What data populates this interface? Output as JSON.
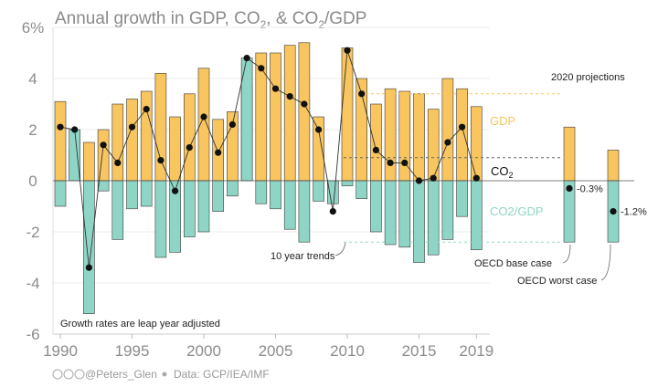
{
  "chart_data": {
    "type": "bar",
    "title_parts": [
      "Annual growth in GDP, CO",
      "2",
      ", & CO",
      "2",
      "/GDP"
    ],
    "x": [
      1990,
      1991,
      1992,
      1993,
      1994,
      1995,
      1996,
      1997,
      1998,
      1999,
      2000,
      2001,
      2002,
      2003,
      2004,
      2005,
      2006,
      2007,
      2008,
      2009,
      2010,
      2011,
      2012,
      2013,
      2014,
      2015,
      2016,
      2017,
      2018,
      2019
    ],
    "series": [
      {
        "name": "GDP",
        "label_text": "GDP",
        "color": "#F8C55F",
        "values": [
          3.1,
          1.2,
          1.5,
          2.0,
          3.0,
          3.2,
          3.5,
          4.2,
          2.5,
          3.4,
          4.4,
          2.4,
          2.7,
          3.7,
          5.0,
          5.0,
          5.3,
          5.4,
          2.5,
          -0.1,
          5.2,
          4.0,
          3.0,
          3.6,
          3.5,
          3.4,
          2.8,
          4.0,
          3.6,
          2.9
        ]
      },
      {
        "name": "CO2/GDP",
        "label_text": "CO2/GDP",
        "color": "#8FD5C6",
        "values": [
          -1.0,
          2.0,
          -5.2,
          -0.4,
          -2.3,
          -1.1,
          -1.0,
          -3.0,
          -2.8,
          -2.2,
          -2.0,
          -1.2,
          -0.6,
          4.8,
          -0.9,
          -1.1,
          -1.9,
          -2.4,
          -0.8,
          -0.9,
          -0.2,
          -0.7,
          -2.0,
          -2.5,
          -2.6,
          -3.2,
          -2.9,
          -2.3,
          -1.4,
          -2.7
        ]
      },
      {
        "name": "CO2",
        "label_parts": [
          "CO",
          "2"
        ],
        "color": "#111111",
        "values": [
          2.1,
          2.0,
          -3.4,
          1.4,
          0.7,
          2.1,
          2.8,
          0.8,
          -0.4,
          1.3,
          2.5,
          1.1,
          2.2,
          4.8,
          4.4,
          3.6,
          3.3,
          3.0,
          2.0,
          -1.2,
          5.1,
          3.4,
          1.2,
          0.7,
          0.7,
          0.0,
          0.1,
          1.5,
          2.1,
          0.1
        ]
      }
    ],
    "ylim": [
      -6,
      6
    ],
    "yticks": [
      -6,
      -4,
      -2,
      0,
      2,
      4,
      6
    ],
    "ytick_labels": [
      "-6",
      "-4",
      "-2",
      "0",
      "2",
      "4",
      "6%"
    ],
    "xticks": [
      1990,
      1995,
      2000,
      2005,
      2010,
      2015,
      2019
    ],
    "xtick_labels": [
      "1990",
      "1995",
      "2000",
      "2005",
      "2010",
      "2015",
      "2019"
    ],
    "trend_lines": {
      "gdp": 3.4,
      "co2": 0.9,
      "ratio": -2.4
    },
    "projections": {
      "heading": "2020 projections",
      "cases": [
        {
          "name": "OECD base case",
          "gdp": 2.1,
          "ratio": -2.4,
          "co2": -0.3,
          "co2_label": "-0.3%"
        },
        {
          "name": "OECD worst case",
          "gdp": 1.2,
          "ratio": -2.4,
          "co2": -1.2,
          "co2_label": "-1.2%"
        }
      ]
    },
    "annotations": {
      "trend": "10 year trends",
      "leap": "Growth rates are leap year adjusted"
    }
  },
  "footer": {
    "author": "@Peters_Glen",
    "source": "Data: GCP/IEA/IMF",
    "license_icon": "cc-icon"
  }
}
